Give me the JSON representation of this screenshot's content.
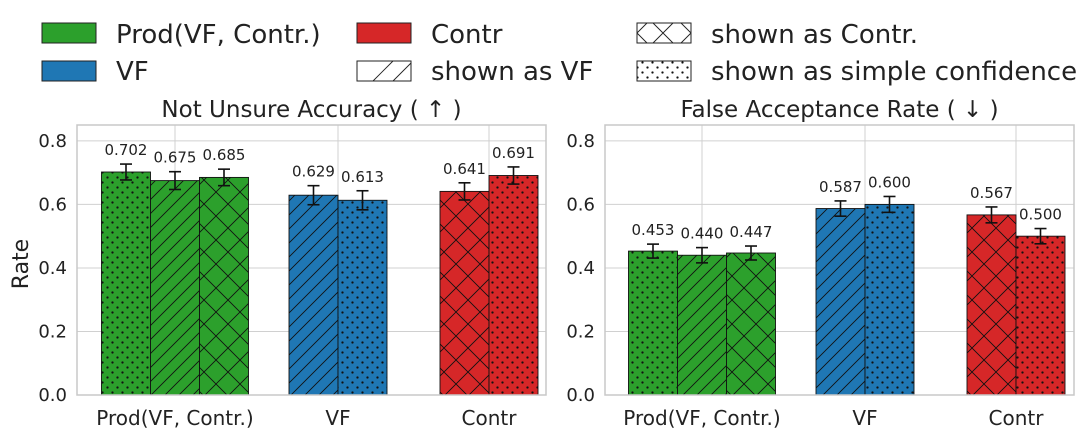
{
  "colors": {
    "prod": "#2ca02c",
    "vf": "#1f77b4",
    "contr": "#d62728",
    "grid": "#d0d0d0",
    "axis": "#c8c8c8"
  },
  "legend": {
    "prod": "Prod(VF, Contr.)",
    "contr": "Contr",
    "vf": "VF",
    "shown_vf": "shown as VF",
    "shown_contr": "shown as Contr.",
    "shown_simple": "shown as simple confidence"
  },
  "ylabel": "Rate",
  "chart_data": [
    {
      "type": "bar",
      "title": "Not Unsure Accuracy ( ↑ )",
      "ylabel": "Rate",
      "ylim": [
        0,
        0.85
      ],
      "yticks": [
        "0.0",
        "0.2",
        "0.4",
        "0.6",
        "0.8"
      ],
      "categories": [
        "Prod(VF, Contr.)",
        "VF",
        "Contr"
      ],
      "groups": [
        {
          "category": "Prod(VF, Contr.)",
          "color": "prod",
          "bars": [
            {
              "value": 0.702,
              "label": "0.702",
              "err": 0.025,
              "pattern": "dots"
            },
            {
              "value": 0.675,
              "label": "0.675",
              "err": 0.028,
              "pattern": "diag"
            },
            {
              "value": 0.685,
              "label": "0.685",
              "err": 0.026,
              "pattern": "cross"
            }
          ]
        },
        {
          "category": "VF",
          "color": "vf",
          "bars": [
            {
              "value": 0.629,
              "label": "0.629",
              "err": 0.03,
              "pattern": "diag"
            },
            {
              "value": 0.613,
              "label": "0.613",
              "err": 0.03,
              "pattern": "dots"
            }
          ]
        },
        {
          "category": "Contr",
          "color": "contr",
          "bars": [
            {
              "value": 0.641,
              "label": "0.641",
              "err": 0.027,
              "pattern": "cross"
            },
            {
              "value": 0.691,
              "label": "0.691",
              "err": 0.027,
              "pattern": "dots"
            }
          ]
        }
      ]
    },
    {
      "type": "bar",
      "title": "False Acceptance Rate ( ↓ )",
      "ylabel": "",
      "ylim": [
        0,
        0.85
      ],
      "yticks": [
        "0.0",
        "0.2",
        "0.4",
        "0.6",
        "0.8"
      ],
      "categories": [
        "Prod(VF, Contr.)",
        "VF",
        "Contr"
      ],
      "groups": [
        {
          "category": "Prod(VF, Contr.)",
          "color": "prod",
          "bars": [
            {
              "value": 0.453,
              "label": "0.453",
              "err": 0.022,
              "pattern": "dots"
            },
            {
              "value": 0.44,
              "label": "0.440",
              "err": 0.024,
              "pattern": "diag"
            },
            {
              "value": 0.447,
              "label": "0.447",
              "err": 0.022,
              "pattern": "cross"
            }
          ]
        },
        {
          "category": "VF",
          "color": "vf",
          "bars": [
            {
              "value": 0.587,
              "label": "0.587",
              "err": 0.024,
              "pattern": "diag"
            },
            {
              "value": 0.6,
              "label": "0.600",
              "err": 0.025,
              "pattern": "dots"
            }
          ]
        },
        {
          "category": "Contr",
          "color": "contr",
          "bars": [
            {
              "value": 0.567,
              "label": "0.567",
              "err": 0.025,
              "pattern": "cross"
            },
            {
              "value": 0.5,
              "label": "0.500",
              "err": 0.024,
              "pattern": "dots"
            }
          ]
        }
      ]
    }
  ]
}
